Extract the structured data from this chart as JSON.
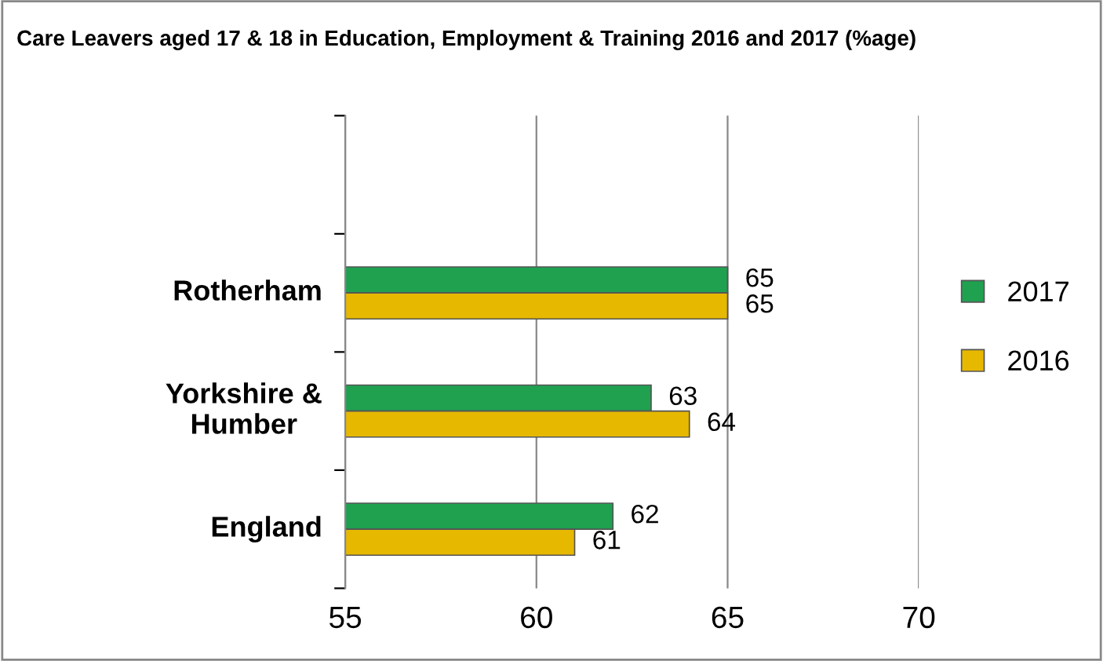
{
  "chart_data": {
    "type": "bar",
    "orientation": "horizontal",
    "title": "Care Leavers aged 17 & 18 in Education, Employment & Training 2016 and 2017 (%age)",
    "categories": [
      null,
      "Rotherham",
      "Yorkshire &\nHumber",
      "England"
    ],
    "series": [
      {
        "name": "2017",
        "color": "#1fa150",
        "values": [
          null,
          65,
          63,
          62
        ]
      },
      {
        "name": "2016",
        "color": "#e6b800",
        "values": [
          null,
          65,
          64,
          61
        ]
      }
    ],
    "xlim": [
      55,
      70
    ],
    "xticks": [
      55,
      60,
      65,
      70
    ],
    "grid": "x",
    "legend": "right",
    "data_labels": true
  }
}
